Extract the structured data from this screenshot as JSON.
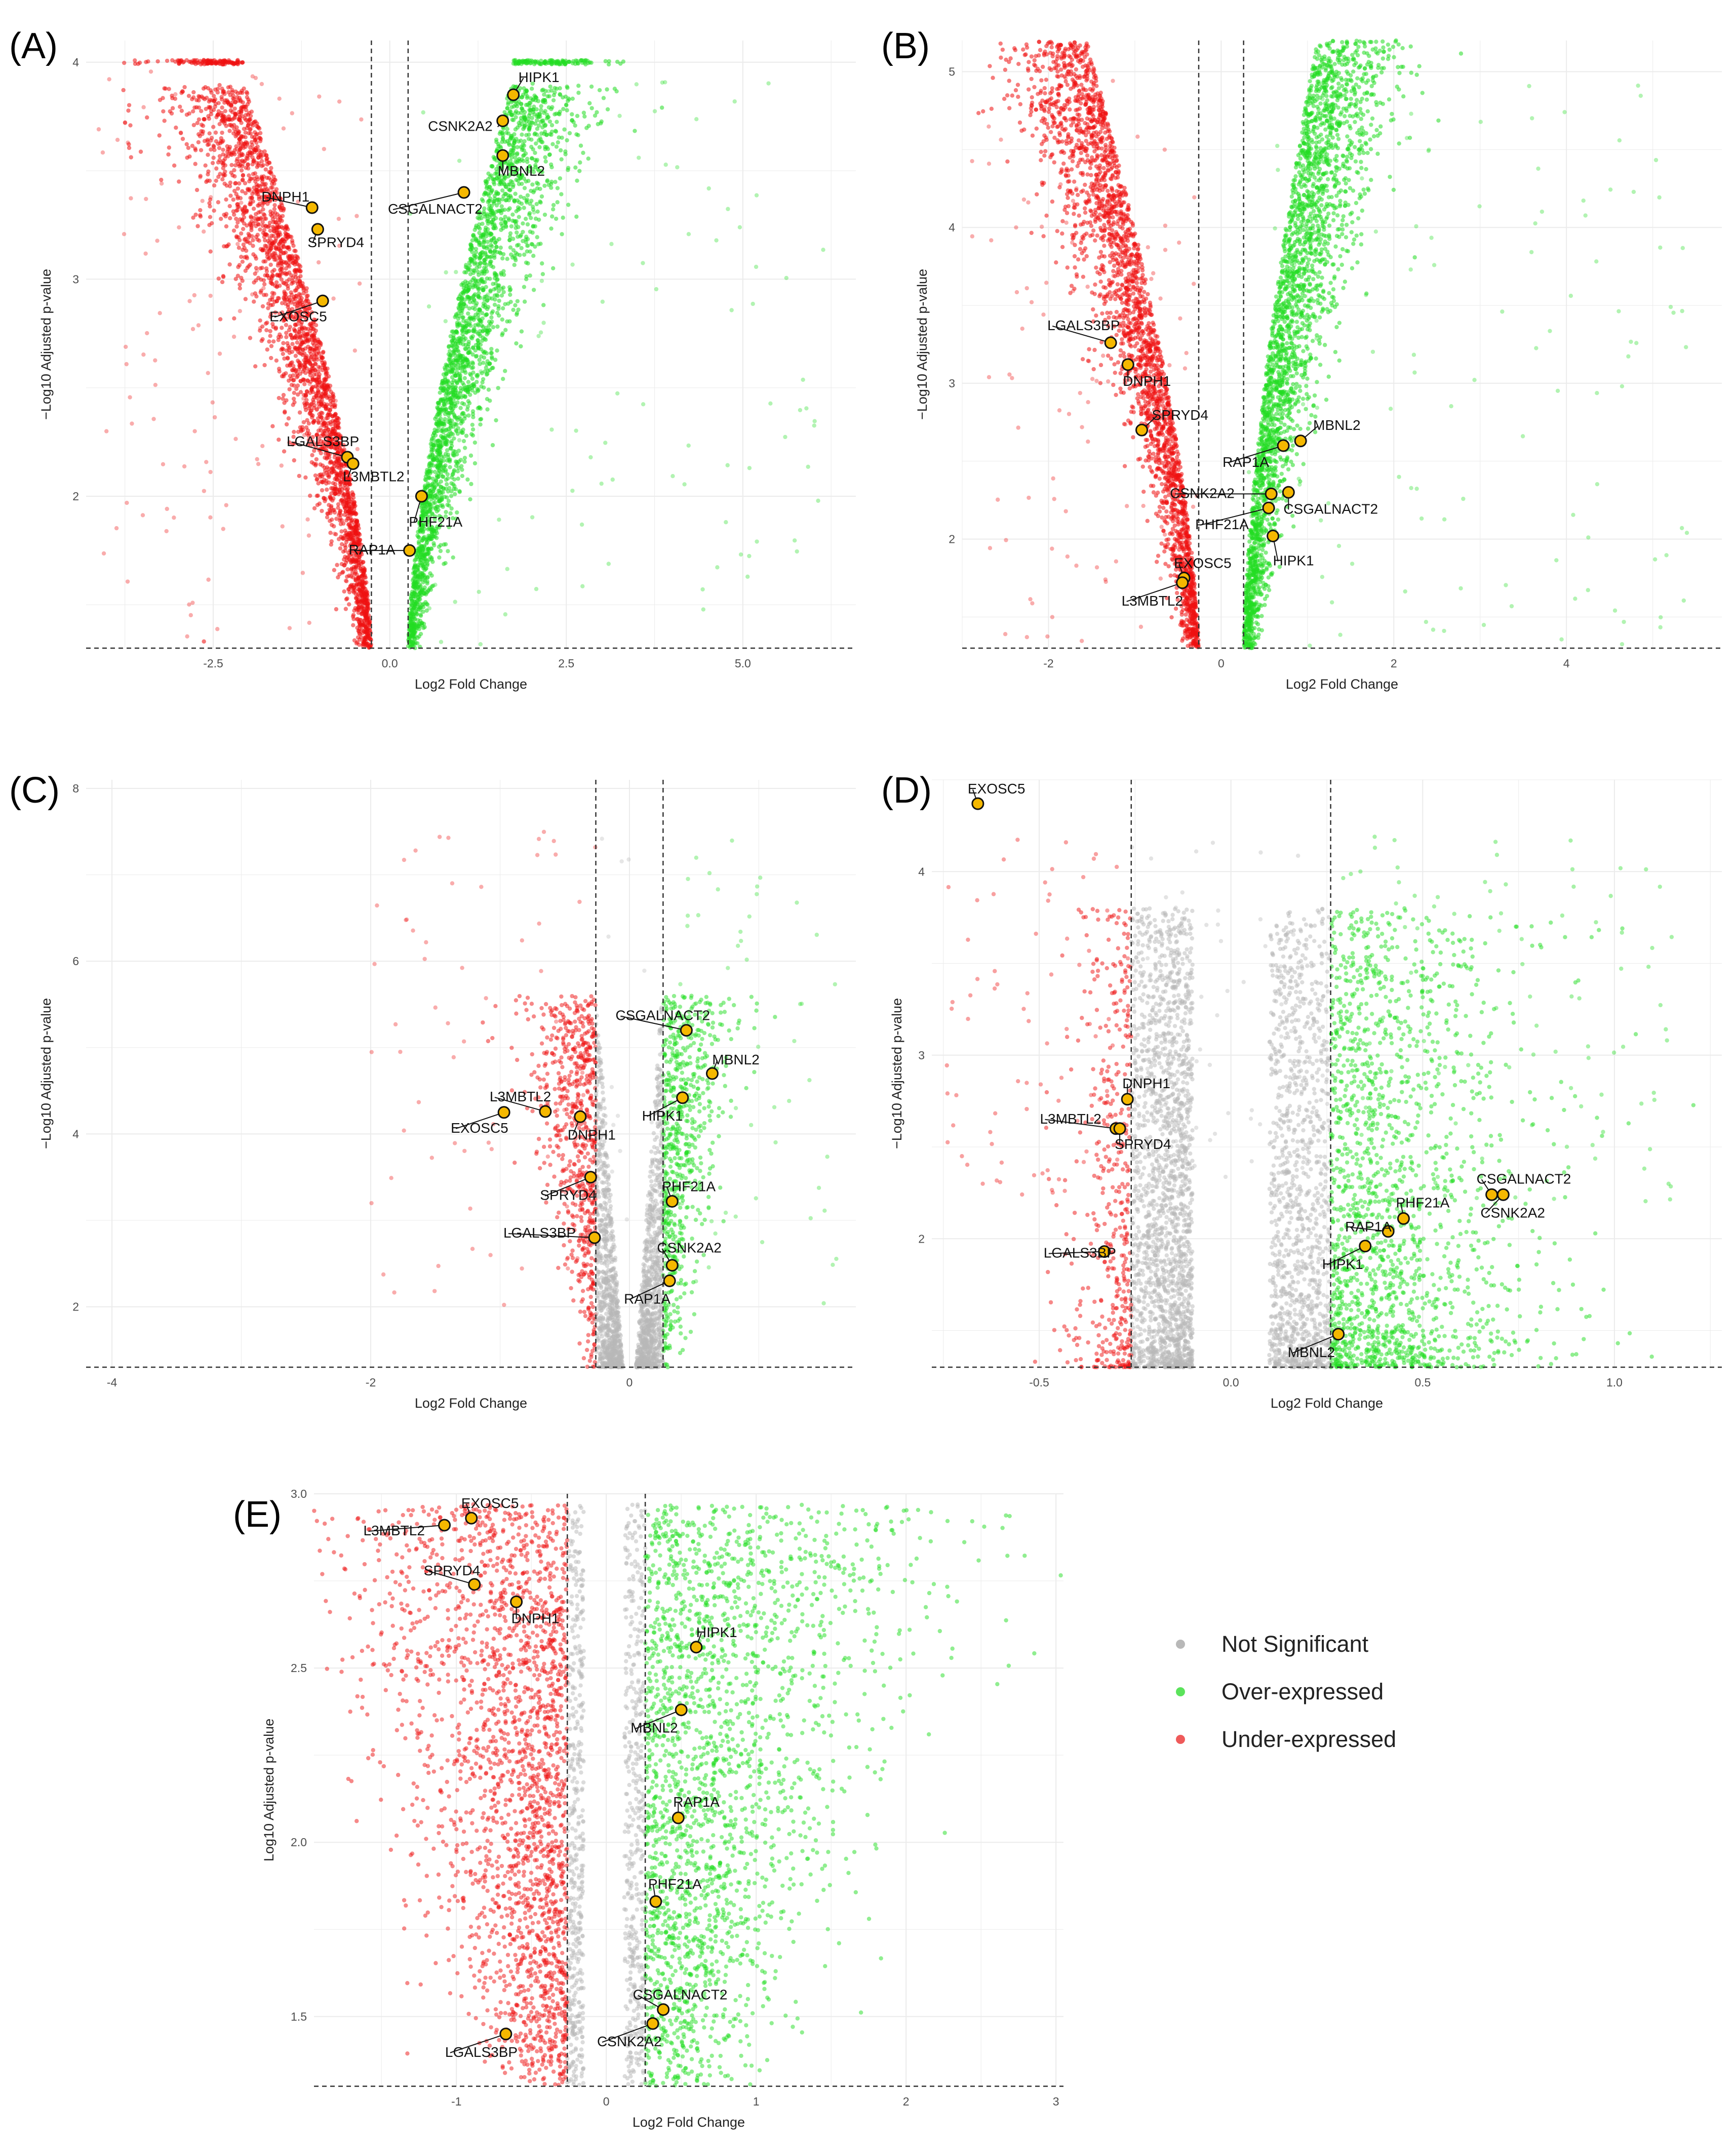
{
  "colors": {
    "not_significant": "#b8b8b8",
    "over_expressed": "#22dd22",
    "under_expressed": "#ee1111",
    "highlight_fill": "#f5b800",
    "highlight_stroke": "#111111",
    "threshold_line": "#333333",
    "grid": "#ebebeb"
  },
  "legend": {
    "items": [
      {
        "label": "Not Significant",
        "color": "#b8b8b8"
      },
      {
        "label": "Over-expressed",
        "color": "#22dd22"
      },
      {
        "label": "Under-expressed",
        "color": "#ee1111"
      }
    ]
  },
  "chart_data": [
    {
      "panel": "(A)",
      "type": "scatter",
      "xlabel": "Log2 Fold Change",
      "ylabel": "−Log10 Adjusted p-value",
      "xlim": [
        -4.3,
        6.6
      ],
      "ylim": [
        1.3,
        4.1
      ],
      "xticks": [
        -2.5,
        0,
        2.5,
        5.0
      ],
      "xtick_labels": [
        "-2.5",
        "0.0",
        "2.5",
        "5.0"
      ],
      "yticks": [
        2,
        3,
        4
      ],
      "ytick_labels": [
        "2",
        "3",
        "4"
      ],
      "fc_threshold": 0.26,
      "p_threshold": 1.3,
      "y_cap": 4.0,
      "shape": "v-full",
      "genes": [
        {
          "name": "HIPK1",
          "x": 1.75,
          "y": 3.85
        },
        {
          "name": "CSNK2A2",
          "x": 1.6,
          "y": 3.73
        },
        {
          "name": "MBNL2",
          "x": 1.6,
          "y": 3.57
        },
        {
          "name": "CSGALNACT2",
          "x": 1.05,
          "y": 3.4
        },
        {
          "name": "DNPH1",
          "x": -1.1,
          "y": 3.33
        },
        {
          "name": "SPRYD4",
          "x": -1.02,
          "y": 3.23
        },
        {
          "name": "EXOSC5",
          "x": -0.95,
          "y": 2.9
        },
        {
          "name": "LGALS3BP",
          "x": -0.6,
          "y": 2.18
        },
        {
          "name": "L3MBTL2",
          "x": -0.52,
          "y": 2.15
        },
        {
          "name": "PHF21A",
          "x": 0.45,
          "y": 2.0
        },
        {
          "name": "RAP1A",
          "x": 0.28,
          "y": 1.75
        }
      ]
    },
    {
      "panel": "(B)",
      "type": "scatter",
      "xlabel": "Log2 Fold Change",
      "ylabel": "−Log10 Adjusted p-value",
      "xlim": [
        -3.0,
        5.8
      ],
      "ylim": [
        1.3,
        5.2
      ],
      "xticks": [
        -2,
        0,
        2,
        4
      ],
      "xtick_labels": [
        "-2",
        "0",
        "2",
        "4"
      ],
      "yticks": [
        2,
        3,
        4,
        5
      ],
      "ytick_labels": [
        "2",
        "3",
        "4",
        "5"
      ],
      "fc_threshold": 0.26,
      "p_threshold": 1.3,
      "shape": "v-full",
      "genes": [
        {
          "name": "LGALS3BP",
          "x": -1.28,
          "y": 3.26
        },
        {
          "name": "DNPH1",
          "x": -1.08,
          "y": 3.12
        },
        {
          "name": "SPRYD4",
          "x": -0.92,
          "y": 2.7
        },
        {
          "name": "MBNL2",
          "x": 0.92,
          "y": 2.63
        },
        {
          "name": "RAP1A",
          "x": 0.72,
          "y": 2.6
        },
        {
          "name": "CSNK2A2",
          "x": 0.58,
          "y": 2.29
        },
        {
          "name": "CSGALNACT2",
          "x": 0.78,
          "y": 2.3
        },
        {
          "name": "PHF21A",
          "x": 0.55,
          "y": 2.2
        },
        {
          "name": "HIPK1",
          "x": 0.6,
          "y": 2.02
        },
        {
          "name": "EXOSC5",
          "x": -0.43,
          "y": 1.75
        },
        {
          "name": "L3MBTL2",
          "x": -0.45,
          "y": 1.72
        }
      ]
    },
    {
      "panel": "(C)",
      "type": "scatter",
      "xlabel": "Log2 Fold Change",
      "ylabel": "−Log10 Adjusted p-value",
      "xlim": [
        -4.2,
        1.75
      ],
      "ylim": [
        1.3,
        8.1
      ],
      "xticks": [
        -4,
        -2,
        0
      ],
      "xtick_labels": [
        "-4",
        "-2",
        "0"
      ],
      "yticks": [
        2,
        4,
        6,
        8
      ],
      "ytick_labels": [
        "2",
        "4",
        "6",
        "8"
      ],
      "fc_threshold": 0.26,
      "p_threshold": 1.3,
      "shape": "v-partial",
      "genes": [
        {
          "name": "CSGALNACT2",
          "x": 0.44,
          "y": 5.2
        },
        {
          "name": "MBNL2",
          "x": 0.64,
          "y": 4.7
        },
        {
          "name": "HIPK1",
          "x": 0.41,
          "y": 4.42
        },
        {
          "name": "L3MBTL2",
          "x": -0.65,
          "y": 4.26
        },
        {
          "name": "EXOSC5",
          "x": -0.97,
          "y": 4.25
        },
        {
          "name": "DNPH1",
          "x": -0.38,
          "y": 4.2
        },
        {
          "name": "SPRYD4",
          "x": -0.3,
          "y": 3.5
        },
        {
          "name": "PHF21A",
          "x": 0.33,
          "y": 3.22
        },
        {
          "name": "LGALS3BP",
          "x": -0.27,
          "y": 2.8
        },
        {
          "name": "CSNK2A2",
          "x": 0.33,
          "y": 2.48
        },
        {
          "name": "RAP1A",
          "x": 0.31,
          "y": 2.3
        }
      ]
    },
    {
      "panel": "(D)",
      "type": "scatter",
      "xlabel": "Log2 Fold Change",
      "ylabel": "−Log10 Adjusted p-value",
      "xlim": [
        -0.78,
        1.28
      ],
      "ylim": [
        1.3,
        4.5
      ],
      "xticks": [
        -0.5,
        0.0,
        0.5,
        1.0
      ],
      "xtick_labels": [
        "-0.5",
        "0.0",
        "0.5",
        "1.0"
      ],
      "yticks": [
        2,
        3,
        4
      ],
      "ytick_labels": [
        "2",
        "3",
        "4"
      ],
      "fc_threshold": 0.26,
      "p_threshold": 1.3,
      "shape": "band",
      "genes": [
        {
          "name": "EXOSC5",
          "x": -0.66,
          "y": 4.37
        },
        {
          "name": "DNPH1",
          "x": -0.27,
          "y": 2.76
        },
        {
          "name": "L3MBTL2",
          "x": -0.3,
          "y": 2.6
        },
        {
          "name": "SPRYD4",
          "x": -0.29,
          "y": 2.6
        },
        {
          "name": "CSGALNACT2",
          "x": 0.68,
          "y": 2.24
        },
        {
          "name": "CSNK2A2",
          "x": 0.71,
          "y": 2.24
        },
        {
          "name": "PHF21A",
          "x": 0.45,
          "y": 2.11
        },
        {
          "name": "RAP1A",
          "x": 0.41,
          "y": 2.04
        },
        {
          "name": "HIPK1",
          "x": 0.35,
          "y": 1.96
        },
        {
          "name": "LGALS3BP",
          "x": -0.33,
          "y": 1.93
        },
        {
          "name": "MBNL2",
          "x": 0.28,
          "y": 1.48
        }
      ]
    },
    {
      "panel": "(E)",
      "type": "scatter",
      "xlabel": "Log2 Fold Change",
      "ylabel": "Log10 Adjusted p-value",
      "xlim": [
        -1.95,
        3.05
      ],
      "ylim": [
        1.3,
        3.0
      ],
      "xticks": [
        -1,
        0,
        1,
        2,
        3
      ],
      "xtick_labels": [
        "-1",
        "0",
        "1",
        "2",
        "3"
      ],
      "yticks": [
        1.5,
        2.0,
        2.5,
        3.0
      ],
      "ytick_labels": [
        "1.5",
        "2.0",
        "2.5",
        "3.0"
      ],
      "fc_threshold": 0.26,
      "p_threshold": 1.3,
      "y_cap": 2.97,
      "shape": "e-spread",
      "genes": [
        {
          "name": "EXOSC5",
          "x": -0.9,
          "y": 2.93
        },
        {
          "name": "L3MBTL2",
          "x": -1.08,
          "y": 2.91
        },
        {
          "name": "SPRYD4",
          "x": -0.88,
          "y": 2.74
        },
        {
          "name": "DNPH1",
          "x": -0.6,
          "y": 2.69
        },
        {
          "name": "HIPK1",
          "x": 0.6,
          "y": 2.56
        },
        {
          "name": "MBNL2",
          "x": 0.5,
          "y": 2.38
        },
        {
          "name": "RAP1A",
          "x": 0.48,
          "y": 2.07
        },
        {
          "name": "PHF21A",
          "x": 0.33,
          "y": 1.83
        },
        {
          "name": "CSGALNACT2",
          "x": 0.38,
          "y": 1.52
        },
        {
          "name": "CSNK2A2",
          "x": 0.31,
          "y": 1.48
        },
        {
          "name": "LGALS3BP",
          "x": -0.67,
          "y": 1.45
        }
      ]
    }
  ]
}
